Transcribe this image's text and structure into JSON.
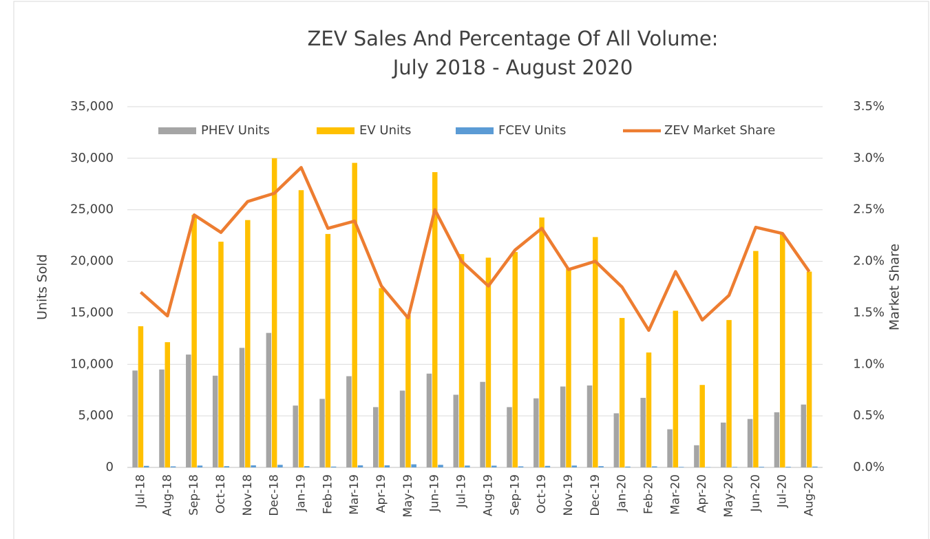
{
  "chart_data": {
    "type": "bar",
    "title": "ZEV Sales And Percentage Of All Volume:",
    "subtitle": "July 2018 - August 2020",
    "y_label": "Units Sold",
    "y2_label": "Market Share",
    "categories": [
      "Jul-18",
      "Aug-18",
      "Sep-18",
      "Oct-18",
      "Nov-18",
      "Dec-18",
      "Jan-19",
      "Feb-19",
      "Mar-19",
      "Apr-19",
      "May-19",
      "Jun-19",
      "Jul-19",
      "Aug-19",
      "Sep-19",
      "Oct-19",
      "Nov-19",
      "Dec-19",
      "Jan-20",
      "Feb-20",
      "Mar-20",
      "Apr-20",
      "May-20",
      "Jun-20",
      "Jul-20",
      "Aug-20"
    ],
    "series": [
      {
        "name": "PHEV Units",
        "color": "#a5a5a5",
        "values": [
          9400,
          9500,
          10950,
          8900,
          11600,
          13050,
          6000,
          6650,
          8850,
          5850,
          7450,
          9100,
          7050,
          8300,
          5850,
          6700,
          7850,
          7950,
          5250,
          6750,
          3700,
          2150,
          4350,
          4700,
          5350,
          6100
        ]
      },
      {
        "name": "EV Units",
        "color": "#ffc000",
        "values": [
          13700,
          12150,
          24500,
          21900,
          24000,
          30000,
          26900,
          22650,
          29550,
          17400,
          14800,
          28650,
          20700,
          20350,
          20900,
          24250,
          19300,
          22350,
          14500,
          11150,
          15200,
          8000,
          14300,
          21000,
          22600,
          19000
        ]
      },
      {
        "name": "FCEV Units",
        "color": "#5b9bd5",
        "values": [
          150,
          100,
          180,
          120,
          200,
          250,
          120,
          80,
          200,
          200,
          300,
          250,
          180,
          170,
          100,
          150,
          180,
          120,
          80,
          100,
          50,
          30,
          50,
          60,
          60,
          80
        ]
      },
      {
        "name": "ZEV Market Share",
        "color": "#ed7d31",
        "type": "line",
        "axis": "y2",
        "values": [
          1.7,
          1.47,
          2.45,
          2.28,
          2.58,
          2.66,
          2.91,
          2.32,
          2.39,
          1.76,
          1.45,
          2.5,
          2.0,
          1.76,
          2.11,
          2.32,
          1.92,
          2.0,
          1.75,
          1.33,
          1.9,
          1.43,
          1.67,
          2.33,
          2.27,
          1.9
        ]
      }
    ],
    "ylim": [
      0,
      35000
    ],
    "yticks": [
      0,
      {
        "value": 5000,
        "label": "5,000"
      },
      {
        "value": 10000,
        "label": "10,000"
      },
      {
        "value": 15000,
        "label": "15,000"
      },
      {
        "value": 20000,
        "label": "20,000"
      },
      {
        "value": 25000,
        "label": "25,000"
      },
      {
        "value": 30000,
        "label": "30,000"
      },
      {
        "value": 35000,
        "label": "35,000"
      }
    ],
    "y2lim": [
      0,
      3.5
    ],
    "y2ticks": [
      {
        "value": 0,
        "label": "0.0%"
      },
      {
        "value": 0.5,
        "label": "0.5%"
      },
      {
        "value": 1,
        "label": "1.0%"
      },
      {
        "value": 1.5,
        "label": "1.5%"
      },
      {
        "value": 2,
        "label": "2.0%"
      },
      {
        "value": 2.5,
        "label": "2.5%"
      },
      {
        "value": 3,
        "label": "3.0%"
      },
      {
        "value": 3.5,
        "label": "3.5%"
      }
    ],
    "grid": true,
    "legend": "top"
  }
}
